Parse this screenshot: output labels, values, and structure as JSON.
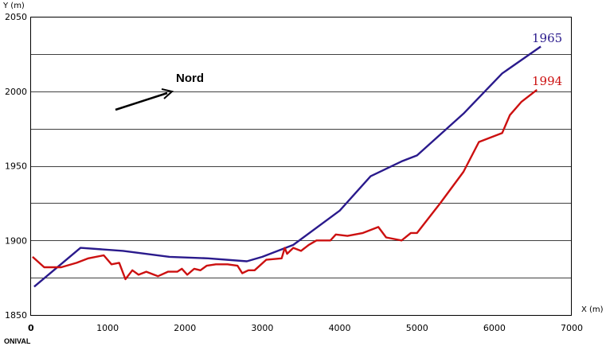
{
  "chart_data": {
    "type": "line",
    "xlabel": "X (m)",
    "ylabel": "Y (m)",
    "xlim": [
      0,
      7000
    ],
    "ylim": [
      1850,
      2050
    ],
    "x_ticks": [
      0,
      1000,
      2000,
      3000,
      4000,
      5000,
      6000,
      7000
    ],
    "y_ticks": [
      1850,
      1900,
      1950,
      2000,
      2050
    ],
    "grid": "horizontal",
    "annotations": {
      "north": "Nord",
      "origin": "ONIVAL"
    },
    "colors": {
      "1965": "#2a1a8c",
      "1994": "#cc1010",
      "grid": "#000000"
    },
    "series": [
      {
        "name": "1965",
        "x": [
          50,
          650,
          1200,
          1800,
          2300,
          2800,
          3000,
          3400,
          4000,
          4400,
          4800,
          5000,
          5600,
          6100,
          6600
        ],
        "y": [
          1869,
          1895,
          1893,
          1889,
          1888,
          1886,
          1889,
          1897,
          1920,
          1943,
          1953,
          1957,
          1985,
          2012,
          2030
        ]
      },
      {
        "name": "1994",
        "x": [
          30,
          180,
          400,
          600,
          750,
          950,
          1050,
          1150,
          1230,
          1320,
          1400,
          1500,
          1650,
          1780,
          1900,
          1960,
          2030,
          2120,
          2200,
          2280,
          2400,
          2550,
          2680,
          2740,
          2820,
          2900,
          3050,
          3250,
          3290,
          3320,
          3400,
          3500,
          3600,
          3700,
          3880,
          3950,
          4100,
          4300,
          4500,
          4600,
          4800,
          4920,
          5000,
          5300,
          5600,
          5800,
          6100,
          6200,
          6350,
          6550
        ],
        "y": [
          1889,
          1882,
          1882,
          1885,
          1888,
          1890,
          1884,
          1885,
          1874,
          1880,
          1877,
          1879,
          1876,
          1879,
          1879,
          1881,
          1877,
          1881,
          1880,
          1883,
          1884,
          1884,
          1883,
          1878,
          1880,
          1880,
          1887,
          1888,
          1895,
          1891,
          1895,
          1893,
          1897,
          1900,
          1900,
          1904,
          1903,
          1905,
          1909,
          1902,
          1900,
          1905,
          1905,
          1925,
          1946,
          1966,
          1972,
          1984,
          1993,
          2001
        ]
      }
    ]
  }
}
